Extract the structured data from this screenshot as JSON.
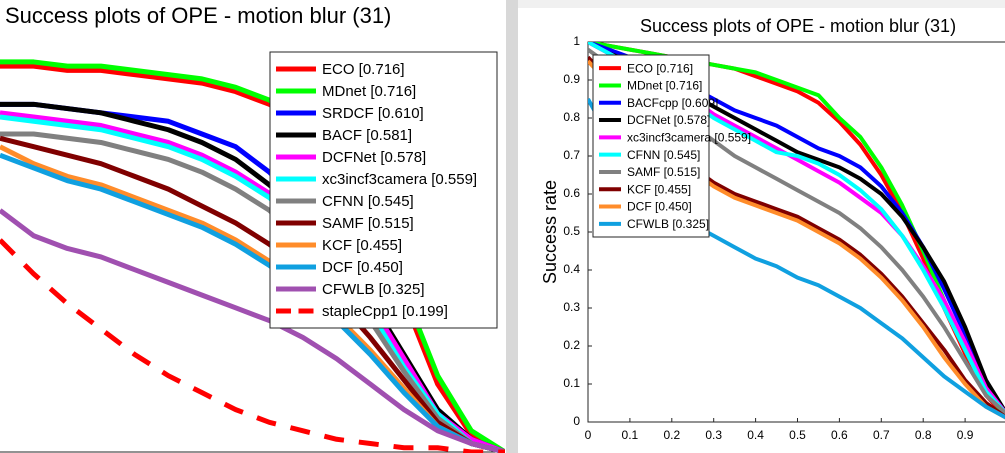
{
  "chart_data": [
    {
      "type": "line",
      "title": "Success plots of OPE - motion blur (31)",
      "x": [
        0.25,
        0.3,
        0.35,
        0.4,
        0.45,
        0.5,
        0.55,
        0.6,
        0.65,
        0.7,
        0.75,
        0.8,
        0.85,
        0.9,
        0.95,
        1.0
      ],
      "xlim": [
        0.25,
        1.0
      ],
      "ylim": [
        0,
        1
      ],
      "series": [
        {
          "name": "ECO [0.716]",
          "color": "#ff0000",
          "values": [
            0.91,
            0.91,
            0.9,
            0.9,
            0.89,
            0.88,
            0.87,
            0.85,
            0.82,
            0.77,
            0.68,
            0.55,
            0.36,
            0.16,
            0.04,
            0.0
          ]
        },
        {
          "name": "MDnet [0.716]",
          "color": "#00ff00",
          "values": [
            0.92,
            0.92,
            0.91,
            0.91,
            0.9,
            0.89,
            0.88,
            0.86,
            0.83,
            0.78,
            0.7,
            0.57,
            0.38,
            0.18,
            0.05,
            0.0
          ]
        },
        {
          "name": "SRDCF [0.610]",
          "color": "#0000ff",
          "values": [
            0.82,
            0.82,
            0.81,
            0.8,
            0.79,
            0.78,
            0.75,
            0.72,
            0.66,
            0.58,
            0.48,
            0.36,
            0.22,
            0.1,
            0.03,
            0.0
          ]
        },
        {
          "name": "BACF [0.581]",
          "color": "#000000",
          "values": [
            0.82,
            0.82,
            0.81,
            0.8,
            0.78,
            0.76,
            0.73,
            0.69,
            0.63,
            0.56,
            0.47,
            0.36,
            0.23,
            0.1,
            0.03,
            0.0
          ]
        },
        {
          "name": "DCFNet [0.578]",
          "color": "#ff00ff",
          "values": [
            0.8,
            0.79,
            0.78,
            0.77,
            0.75,
            0.73,
            0.7,
            0.66,
            0.61,
            0.54,
            0.45,
            0.35,
            0.22,
            0.09,
            0.03,
            0.0
          ]
        },
        {
          "name": "xc3incf3camera [0.559]",
          "color": "#00ffff",
          "values": [
            0.79,
            0.78,
            0.77,
            0.76,
            0.74,
            0.72,
            0.69,
            0.65,
            0.6,
            0.53,
            0.44,
            0.33,
            0.2,
            0.09,
            0.02,
            0.0
          ]
        },
        {
          "name": "CFNN [0.545]",
          "color": "#808080",
          "values": [
            0.75,
            0.75,
            0.74,
            0.73,
            0.71,
            0.69,
            0.66,
            0.62,
            0.57,
            0.5,
            0.41,
            0.31,
            0.19,
            0.08,
            0.02,
            0.0
          ]
        },
        {
          "name": "SAMF [0.515]",
          "color": "#800000",
          "values": [
            0.74,
            0.72,
            0.7,
            0.68,
            0.65,
            0.62,
            0.58,
            0.54,
            0.49,
            0.43,
            0.36,
            0.27,
            0.17,
            0.07,
            0.02,
            0.0
          ]
        },
        {
          "name": "KCF [0.455]",
          "color": "#ff8c2a",
          "values": [
            0.72,
            0.68,
            0.65,
            0.63,
            0.6,
            0.57,
            0.54,
            0.5,
            0.45,
            0.39,
            0.32,
            0.24,
            0.15,
            0.06,
            0.02,
            0.0
          ]
        },
        {
          "name": "DCF [0.450]",
          "color": "#10a0e0",
          "values": [
            0.7,
            0.67,
            0.64,
            0.62,
            0.59,
            0.56,
            0.53,
            0.49,
            0.44,
            0.38,
            0.31,
            0.23,
            0.14,
            0.06,
            0.02,
            0.0
          ]
        },
        {
          "name": "CFWLB [0.325]",
          "color": "#a050b0",
          "values": [
            0.57,
            0.51,
            0.48,
            0.46,
            0.43,
            0.4,
            0.37,
            0.34,
            0.31,
            0.27,
            0.22,
            0.16,
            0.1,
            0.05,
            0.02,
            0.0
          ]
        },
        {
          "name": "stapleCpp1 [0.199]",
          "color": "#ff0000",
          "dashed": true,
          "values": [
            0.5,
            0.42,
            0.35,
            0.29,
            0.23,
            0.18,
            0.14,
            0.1,
            0.07,
            0.05,
            0.03,
            0.02,
            0.01,
            0.01,
            0.0,
            0.0
          ]
        }
      ]
    },
    {
      "type": "line",
      "title": "Success plots of OPE - motion blur (31)",
      "y_label": "Success rate",
      "x": [
        0,
        0.05,
        0.1,
        0.15,
        0.2,
        0.25,
        0.3,
        0.35,
        0.4,
        0.45,
        0.5,
        0.55,
        0.6,
        0.65,
        0.7,
        0.75,
        0.8,
        0.85,
        0.9,
        0.95,
        1.0
      ],
      "xlim": [
        0,
        1
      ],
      "ylim": [
        0,
        1
      ],
      "xticks": [
        0,
        0.1,
        0.2,
        0.3,
        0.4,
        0.5,
        0.6,
        0.7,
        0.8,
        0.9
      ],
      "yticks": [
        0,
        0.1,
        0.2,
        0.3,
        0.4,
        0.5,
        0.6,
        0.7,
        0.8,
        0.9,
        1
      ],
      "series": [
        {
          "name": "ECO [0.716]",
          "color": "#ff0000",
          "values": [
            1,
            0.99,
            0.98,
            0.97,
            0.96,
            0.95,
            0.94,
            0.93,
            0.91,
            0.89,
            0.87,
            0.84,
            0.79,
            0.73,
            0.65,
            0.55,
            0.43,
            0.3,
            0.18,
            0.07,
            0.01
          ]
        },
        {
          "name": "MDnet [0.716]",
          "color": "#00ff00",
          "values": [
            1,
            0.99,
            0.98,
            0.97,
            0.96,
            0.95,
            0.94,
            0.93,
            0.92,
            0.9,
            0.88,
            0.86,
            0.8,
            0.75,
            0.67,
            0.57,
            0.45,
            0.32,
            0.2,
            0.08,
            0.01
          ]
        },
        {
          "name": "BACFcpp [0.609]",
          "color": "#0000ff",
          "values": [
            1,
            0.98,
            0.96,
            0.94,
            0.91,
            0.88,
            0.85,
            0.82,
            0.8,
            0.78,
            0.75,
            0.72,
            0.7,
            0.67,
            0.62,
            0.55,
            0.46,
            0.35,
            0.23,
            0.1,
            0.02
          ]
        },
        {
          "name": "DCFNet [0.578]",
          "color": "#000000",
          "values": [
            1,
            0.97,
            0.95,
            0.92,
            0.89,
            0.86,
            0.83,
            0.8,
            0.77,
            0.74,
            0.71,
            0.69,
            0.67,
            0.64,
            0.6,
            0.54,
            0.46,
            0.37,
            0.25,
            0.11,
            0.02
          ]
        },
        {
          "name": "xc3incf3camera [0.559]",
          "color": "#ff00ff",
          "values": [
            1,
            0.97,
            0.94,
            0.91,
            0.88,
            0.85,
            0.81,
            0.78,
            0.75,
            0.72,
            0.69,
            0.66,
            0.63,
            0.59,
            0.55,
            0.49,
            0.41,
            0.32,
            0.21,
            0.09,
            0.02
          ]
        },
        {
          "name": "CFNN [0.545]",
          "color": "#00ffff",
          "values": [
            1,
            0.97,
            0.94,
            0.91,
            0.88,
            0.84,
            0.8,
            0.77,
            0.74,
            0.71,
            0.7,
            0.68,
            0.65,
            0.61,
            0.56,
            0.49,
            0.4,
            0.3,
            0.19,
            0.08,
            0.02
          ]
        },
        {
          "name": "SAMF [0.515]",
          "color": "#808080",
          "values": [
            0.98,
            0.94,
            0.9,
            0.86,
            0.82,
            0.78,
            0.74,
            0.7,
            0.67,
            0.64,
            0.61,
            0.58,
            0.55,
            0.51,
            0.46,
            0.4,
            0.33,
            0.25,
            0.16,
            0.07,
            0.02
          ]
        },
        {
          "name": "KCF [0.455]",
          "color": "#800000",
          "values": [
            0.96,
            0.9,
            0.84,
            0.78,
            0.72,
            0.67,
            0.63,
            0.6,
            0.58,
            0.56,
            0.54,
            0.51,
            0.48,
            0.44,
            0.39,
            0.33,
            0.26,
            0.19,
            0.11,
            0.05,
            0.01
          ]
        },
        {
          "name": "DCF [0.450]",
          "color": "#ff8c2a",
          "values": [
            0.95,
            0.89,
            0.83,
            0.77,
            0.71,
            0.66,
            0.62,
            0.59,
            0.57,
            0.55,
            0.53,
            0.5,
            0.47,
            0.43,
            0.38,
            0.32,
            0.25,
            0.17,
            0.1,
            0.04,
            0.01
          ]
        },
        {
          "name": "CFWLB [0.325]",
          "color": "#10a0e0",
          "values": [
            0.85,
            0.75,
            0.66,
            0.6,
            0.55,
            0.52,
            0.49,
            0.46,
            0.43,
            0.41,
            0.38,
            0.36,
            0.33,
            0.3,
            0.26,
            0.22,
            0.17,
            0.12,
            0.08,
            0.04,
            0.01
          ]
        }
      ]
    }
  ]
}
